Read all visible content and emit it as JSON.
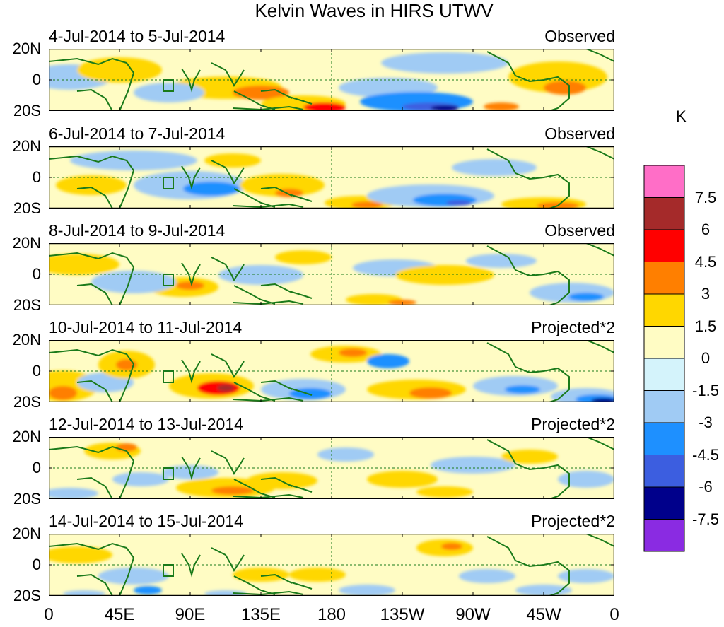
{
  "figure": {
    "title": "Kelvin Waves in HIRS UTWV",
    "panels": [
      {
        "dates": "4-Jul-2014 to 5-Jul-2014",
        "kind": "Observed"
      },
      {
        "dates": "6-Jul-2014 to 7-Jul-2014",
        "kind": "Observed"
      },
      {
        "dates": "8-Jul-2014 to 9-Jul-2014",
        "kind": "Observed"
      },
      {
        "dates": "10-Jul-2014 to 11-Jul-2014",
        "kind": "Projected*2"
      },
      {
        "dates": "12-Jul-2014 to 13-Jul-2014",
        "kind": "Projected*2"
      },
      {
        "dates": "14-Jul-2014 to 15-Jul-2014",
        "kind": "Projected*2"
      }
    ],
    "lat_labels": [
      "20N",
      "0",
      "20S"
    ],
    "lon_labels": [
      "0",
      "45E",
      "90E",
      "135E",
      "180",
      "135W",
      "90W",
      "45W",
      "0"
    ]
  },
  "colorbar": {
    "unit": "K",
    "colors": [
      "#ff6ec7",
      "#a52a2a",
      "#ff0000",
      "#ff7f00",
      "#ffd700",
      "#fffcc4",
      "#d4f3fb",
      "#a0cbf4",
      "#1e90ff",
      "#3c5ee0",
      "#00008b",
      "#8a2be2"
    ],
    "labels": [
      "7.5",
      "6",
      "4.5",
      "3",
      "1.5",
      "0",
      "-1.5",
      "-3",
      "-4.5",
      "-6",
      "-7.5"
    ]
  }
}
